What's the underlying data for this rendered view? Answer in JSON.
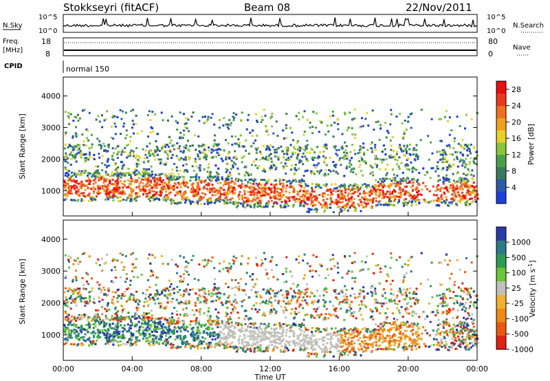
{
  "header": {
    "station": "Stokkseyri (fitACF)",
    "beam": "Beam 08",
    "date": "22/Nov/2011"
  },
  "strip_panels": {
    "nsky_label": "N.Sky",
    "nsearch_label": "N.Search",
    "count_max_label": "10^5",
    "count_min_label": "10^0",
    "freq_label_line1": "Freq.",
    "freq_label_line2": "[MHz]",
    "freq_max": "18",
    "freq_min": "8",
    "nave_label": "Nave",
    "nave_max": "80",
    "nave_min": "0",
    "cpid_label": "CPID",
    "cpid_value": "normal 150"
  },
  "colors": {
    "power_scale": [
      "#1f3fd9",
      "#2e5aa6",
      "#3a7a5a",
      "#4aa048",
      "#8ac43a",
      "#e8d02a",
      "#f0a020",
      "#ee7020",
      "#e83a1c",
      "#e81010"
    ],
    "velocity_scale": [
      "#2a3aa8",
      "#2d7a8a",
      "#2f9a55",
      "#6cc43a",
      "#c0c0b8",
      "#f0b030",
      "#ef8a18",
      "#e85a10",
      "#e02010"
    ]
  },
  "chart_data": [
    {
      "type": "heatmap",
      "name": "power",
      "ylabel": "Slant Range [km]",
      "yticks": [
        1000,
        2000,
        3000,
        4000
      ],
      "ylim": [
        200,
        4600
      ],
      "xlim_hours": [
        0,
        24
      ],
      "colorbar_label": "Power [dB]",
      "colorbar_ticks": [
        4,
        8,
        12,
        16,
        20,
        24,
        28
      ],
      "colorbar_range": [
        0,
        30
      ]
    },
    {
      "type": "heatmap",
      "name": "velocity",
      "ylabel": "Slant Range [km]",
      "yticks": [
        1000,
        2000,
        3000,
        4000
      ],
      "ylim": [
        200,
        4600
      ],
      "xlim_hours": [
        0,
        24
      ],
      "colorbar_label": "Velocity [m s^-1]",
      "colorbar_ticks": [
        "1000",
        "500",
        "100",
        "25",
        "-25",
        "-100",
        "-500",
        "-1000"
      ]
    }
  ],
  "x_axis": {
    "ticks": [
      "00:00",
      "04:00",
      "08:00",
      "12:00",
      "16:00",
      "20:00",
      "00:00"
    ],
    "label": "Time UT"
  }
}
